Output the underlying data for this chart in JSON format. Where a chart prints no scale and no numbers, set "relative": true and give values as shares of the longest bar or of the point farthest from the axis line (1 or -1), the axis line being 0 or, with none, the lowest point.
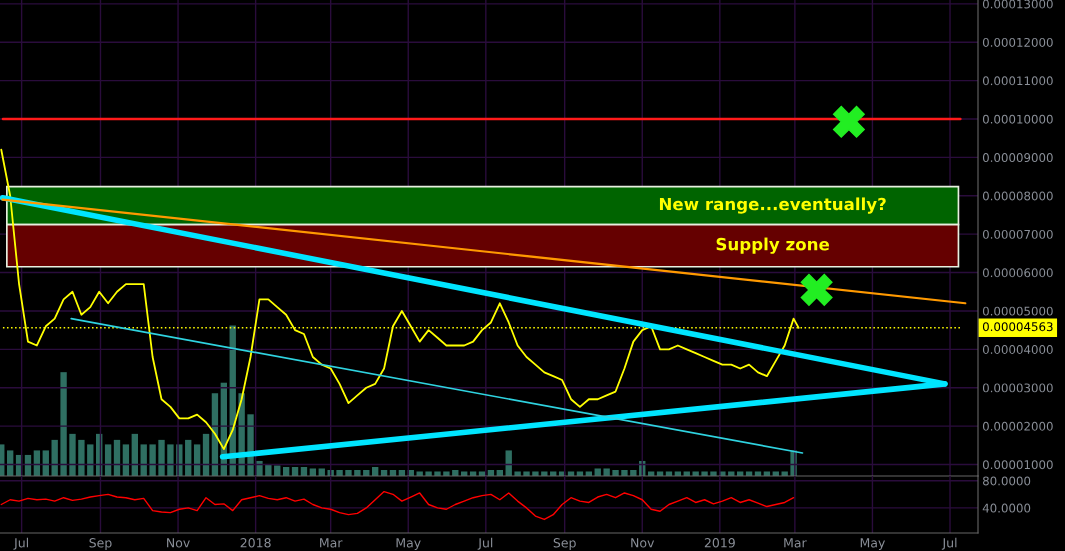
{
  "chart_data": [
    {
      "type": "line",
      "ylim": [
        7e-06,
        0.000131
      ],
      "xlim": [
        "2017-06-14",
        "2019-07-23"
      ],
      "xticks": [
        {
          "value": "2017-07-01",
          "label": null
        },
        {
          "value": "2017-09-01",
          "label": null
        },
        {
          "value": "2017-11-01",
          "label": null
        },
        {
          "value": "2018-01-01",
          "label": null
        },
        {
          "value": "2018-03-01",
          "label": null
        },
        {
          "value": "2018-05-01",
          "label": null
        },
        {
          "value": "2018-07-01",
          "label": null
        },
        {
          "value": "2018-09-01",
          "label": null
        },
        {
          "value": "2018-11-01",
          "label": null
        },
        {
          "value": "2019-01-01",
          "label": null
        },
        {
          "value": "2019-03-01",
          "label": null
        },
        {
          "value": "2019-05-01",
          "label": null
        },
        {
          "value": "2019-07-01",
          "label": null
        }
      ],
      "yticks": [
        {
          "value": 1e-05,
          "label": "0.00001000"
        },
        {
          "value": 2e-05,
          "label": "0.00002000"
        },
        {
          "value": 3e-05,
          "label": "0.00003000"
        },
        {
          "value": 4e-05,
          "label": "0.00004000"
        },
        {
          "value": 5e-05,
          "label": "0.00005000"
        },
        {
          "value": 6e-05,
          "label": "0.00006000"
        },
        {
          "value": 7e-05,
          "label": "0.00007000"
        },
        {
          "value": 8e-05,
          "label": "0.00008000"
        },
        {
          "value": 9e-05,
          "label": "0.00009000"
        },
        {
          "value": 0.0001,
          "label": "0.00010000"
        },
        {
          "value": 0.00011,
          "label": "0.00011000"
        },
        {
          "value": 0.00012,
          "label": "0.00012000"
        },
        {
          "value": 0.00013,
          "label": "0.00013000"
        }
      ],
      "tick_labels": "y",
      "grid": true,
      "x": [
        "2017-06-15",
        "2017-06-22",
        "2017-06-29",
        "2017-07-06",
        "2017-07-13",
        "2017-07-20",
        "2017-07-27",
        "2017-08-03",
        "2017-08-10",
        "2017-08-17",
        "2017-08-24",
        "2017-08-31",
        "2017-09-07",
        "2017-09-14",
        "2017-09-21",
        "2017-09-28",
        "2017-10-05",
        "2017-10-12",
        "2017-10-19",
        "2017-10-26",
        "2017-11-02",
        "2017-11-09",
        "2017-11-16",
        "2017-11-23",
        "2017-11-30",
        "2017-12-07",
        "2017-12-14",
        "2017-12-21",
        "2017-12-28",
        "2018-01-04",
        "2018-01-11",
        "2018-01-18",
        "2018-01-25",
        "2018-02-01",
        "2018-02-08",
        "2018-02-15",
        "2018-02-22",
        "2018-03-01",
        "2018-03-08",
        "2018-03-15",
        "2018-03-22",
        "2018-03-29",
        "2018-04-05",
        "2018-04-12",
        "2018-04-19",
        "2018-04-26",
        "2018-05-03",
        "2018-05-10",
        "2018-05-17",
        "2018-05-24",
        "2018-05-31",
        "2018-06-07",
        "2018-06-14",
        "2018-06-21",
        "2018-06-28",
        "2018-07-05",
        "2018-07-12",
        "2018-07-19",
        "2018-07-26",
        "2018-08-02",
        "2018-08-09",
        "2018-08-16",
        "2018-08-23",
        "2018-08-30",
        "2018-09-06",
        "2018-09-13",
        "2018-09-20",
        "2018-09-27",
        "2018-10-04",
        "2018-10-11",
        "2018-10-18",
        "2018-10-25",
        "2018-11-01",
        "2018-11-08",
        "2018-11-15",
        "2018-11-22",
        "2018-11-29",
        "2018-12-06",
        "2018-12-13",
        "2018-12-20",
        "2018-12-27",
        "2019-01-03",
        "2019-01-10",
        "2019-01-17",
        "2019-01-24",
        "2019-01-31",
        "2019-02-07",
        "2019-02-14",
        "2019-02-21",
        "2019-02-28",
        "2019-03-04"
      ],
      "series": [
        {
          "color": "#ffff00",
          "values": [
            9.2e-05,
            8e-05,
            5.7e-05,
            4.2e-05,
            4.1e-05,
            4.6e-05,
            4.8e-05,
            5.3e-05,
            5.5e-05,
            4.9e-05,
            5.1e-05,
            5.5e-05,
            5.2e-05,
            5.5e-05,
            5.7e-05,
            5.7e-05,
            5.7e-05,
            3.8e-05,
            2.7e-05,
            2.5e-05,
            2.2e-05,
            2.2e-05,
            2.3e-05,
            2.1e-05,
            1.8e-05,
            1.4e-05,
            1.9e-05,
            2.7e-05,
            3.8e-05,
            5.3e-05,
            5.3e-05,
            5.1e-05,
            4.9e-05,
            4.5e-05,
            4.4e-05,
            3.8e-05,
            3.6e-05,
            3.5e-05,
            3.1e-05,
            2.6e-05,
            2.8e-05,
            3e-05,
            3.1e-05,
            3.5e-05,
            4.6e-05,
            5e-05,
            4.6e-05,
            4.2e-05,
            4.5e-05,
            4.3e-05,
            4.1e-05,
            4.1e-05,
            4.1e-05,
            4.2e-05,
            4.5e-05,
            4.7e-05,
            5.2e-05,
            4.7e-05,
            4.1e-05,
            3.8e-05,
            3.6e-05,
            3.4e-05,
            3.3e-05,
            3.2e-05,
            2.7e-05,
            2.5e-05,
            2.7e-05,
            2.7e-05,
            2.8e-05,
            2.9e-05,
            3.5e-05,
            4.2e-05,
            4.5e-05,
            4.6e-05,
            4e-05,
            4e-05,
            4.1e-05,
            4e-05,
            3.9e-05,
            3.8e-05,
            3.7e-05,
            3.6e-05,
            3.6e-05,
            3.5e-05,
            3.6e-05,
            3.4e-05,
            3.3e-05,
            3.7e-05,
            4.1e-05,
            4.8e-05,
            4.56e-05
          ]
        },
        {
          "type": "line",
          "color": "#ff9900",
          "x": [
            "2017-06-16",
            "2019-07-13"
          ],
          "values": [
            7.9e-05,
            5.2e-05
          ]
        },
        {
          "type": "line",
          "color": "#00e5ff",
          "x": [
            "2017-06-16",
            "2019-06-27"
          ],
          "values": [
            7.95e-05,
            3.1e-05
          ]
        },
        {
          "type": "line",
          "color": "#00e5ff",
          "x": [
            "2017-12-06",
            "2019-06-27"
          ],
          "values": [
            1.2e-05,
            3.1e-05
          ]
        },
        {
          "type": "line",
          "color": "#2fd3e0",
          "x": [
            "2017-08-09",
            "2019-03-07"
          ],
          "values": [
            4.8e-05,
            1.3e-05
          ]
        }
      ],
      "ref_lines": [
        {
          "axis": "y",
          "value": 0.0001,
          "color": "#ff1a1a",
          "line_style": "solid"
        },
        {
          "axis": "y",
          "value": 4.563e-05,
          "label": "0.00004563",
          "color": "#ffff00",
          "line_style": "dotted"
        }
      ],
      "bands": [
        {
          "axis": "y",
          "from": 7.25e-05,
          "to": 8.24e-05,
          "label": "New range...eventually?",
          "color": "#006400"
        },
        {
          "axis": "y",
          "from": 6.15e-05,
          "to": 7.25e-05,
          "label": "Supply zone",
          "color": "#650000"
        }
      ]
    },
    {
      "type": "bar",
      "relative": true,
      "color": "#2f6f62",
      "xlim": [
        "2017-06-14",
        "2019-07-23"
      ],
      "xticks": [
        {
          "value": "2017-07-01",
          "label": null
        },
        {
          "value": "2017-09-01",
          "label": null
        },
        {
          "value": "2017-11-01",
          "label": null
        },
        {
          "value": "2018-01-01",
          "label": null
        },
        {
          "value": "2018-03-01",
          "label": null
        },
        {
          "value": "2018-05-01",
          "label": null
        },
        {
          "value": "2018-07-01",
          "label": null
        },
        {
          "value": "2018-09-01",
          "label": null
        },
        {
          "value": "2018-11-01",
          "label": null
        },
        {
          "value": "2019-01-01",
          "label": null
        },
        {
          "value": "2019-03-01",
          "label": null
        },
        {
          "value": "2019-05-01",
          "label": null
        },
        {
          "value": "2019-07-01",
          "label": null
        }
      ],
      "tick_labels": false,
      "x": [
        "2017-06-15",
        "2017-06-22",
        "2017-06-29",
        "2017-07-06",
        "2017-07-13",
        "2017-07-20",
        "2017-07-27",
        "2017-08-03",
        "2017-08-10",
        "2017-08-17",
        "2017-08-24",
        "2017-08-31",
        "2017-09-07",
        "2017-09-14",
        "2017-09-21",
        "2017-09-28",
        "2017-10-05",
        "2017-10-12",
        "2017-10-19",
        "2017-10-26",
        "2017-11-02",
        "2017-11-09",
        "2017-11-16",
        "2017-11-23",
        "2017-11-30",
        "2017-12-07",
        "2017-12-14",
        "2017-12-21",
        "2017-12-28",
        "2018-01-04",
        "2018-01-11",
        "2018-01-18",
        "2018-01-25",
        "2018-02-01",
        "2018-02-08",
        "2018-02-15",
        "2018-02-22",
        "2018-03-01",
        "2018-03-08",
        "2018-03-15",
        "2018-03-22",
        "2018-03-29",
        "2018-04-05",
        "2018-04-12",
        "2018-04-19",
        "2018-04-26",
        "2018-05-03",
        "2018-05-10",
        "2018-05-17",
        "2018-05-24",
        "2018-05-31",
        "2018-06-07",
        "2018-06-14",
        "2018-06-21",
        "2018-06-28",
        "2018-07-05",
        "2018-07-12",
        "2018-07-19",
        "2018-07-26",
        "2018-08-02",
        "2018-08-09",
        "2018-08-16",
        "2018-08-23",
        "2018-08-30",
        "2018-09-06",
        "2018-09-13",
        "2018-09-20",
        "2018-09-27",
        "2018-10-04",
        "2018-10-11",
        "2018-10-18",
        "2018-10-25",
        "2018-11-01",
        "2018-11-08",
        "2018-11-15",
        "2018-11-22",
        "2018-11-29",
        "2018-12-06",
        "2018-12-13",
        "2018-12-20",
        "2018-12-27",
        "2019-01-03",
        "2019-01-10",
        "2019-01-17",
        "2019-01-24",
        "2019-01-31",
        "2019-02-07",
        "2019-02-14",
        "2019-02-21",
        "2019-02-28"
      ],
      "values": [
        0.21,
        0.17,
        0.14,
        0.14,
        0.17,
        0.17,
        0.24,
        0.69,
        0.28,
        0.24,
        0.21,
        0.28,
        0.21,
        0.24,
        0.21,
        0.28,
        0.21,
        0.21,
        0.24,
        0.21,
        0.21,
        0.24,
        0.21,
        0.28,
        0.55,
        0.62,
        1,
        0.55,
        0.41,
        0.1,
        0.08,
        0.07,
        0.06,
        0.06,
        0.06,
        0.05,
        0.05,
        0.04,
        0.04,
        0.04,
        0.04,
        0.04,
        0.06,
        0.04,
        0.04,
        0.04,
        0.04,
        0.03,
        0.03,
        0.03,
        0.03,
        0.04,
        0.03,
        0.03,
        0.03,
        0.04,
        0.04,
        0.17,
        0.03,
        0.03,
        0.03,
        0.03,
        0.03,
        0.03,
        0.03,
        0.03,
        0.03,
        0.05,
        0.05,
        0.04,
        0.04,
        0.04,
        0.1,
        0.03,
        0.03,
        0.03,
        0.03,
        0.03,
        0.03,
        0.03,
        0.03,
        0.03,
        0.03,
        0.03,
        0.03,
        0.03,
        0.03,
        0.03,
        0.03,
        0.17
      ]
    },
    {
      "type": "line",
      "ylim": [
        3,
        87
      ],
      "yticks": [
        {
          "value": 80,
          "label": "80.0000"
        },
        {
          "value": 40,
          "label": "40.0000"
        }
      ],
      "xlim": [
        "2017-06-14",
        "2019-07-23"
      ],
      "xticks": [
        {
          "value": "2017-07-01",
          "label": "Jul"
        },
        {
          "value": "2017-09-01",
          "label": "Sep"
        },
        {
          "value": "2017-11-01",
          "label": "Nov"
        },
        {
          "value": "2018-01-01",
          "label": "2018"
        },
        {
          "value": "2018-03-01",
          "label": "Mar"
        },
        {
          "value": "2018-05-01",
          "label": "May"
        },
        {
          "value": "2018-07-01",
          "label": "Jul"
        },
        {
          "value": "2018-09-01",
          "label": "Sep"
        },
        {
          "value": "2018-11-01",
          "label": "Nov"
        },
        {
          "value": "2019-01-01",
          "label": "2019"
        },
        {
          "value": "2019-03-01",
          "label": "Mar"
        },
        {
          "value": "2019-05-01",
          "label": "May"
        },
        {
          "value": "2019-07-01",
          "label": "Jul"
        }
      ],
      "grid": true,
      "x": [
        "2017-06-15",
        "2017-06-22",
        "2017-06-29",
        "2017-07-06",
        "2017-07-13",
        "2017-07-20",
        "2017-07-27",
        "2017-08-03",
        "2017-08-10",
        "2017-08-17",
        "2017-08-24",
        "2017-08-31",
        "2017-09-07",
        "2017-09-14",
        "2017-09-21",
        "2017-09-28",
        "2017-10-05",
        "2017-10-12",
        "2017-10-19",
        "2017-10-26",
        "2017-11-02",
        "2017-11-09",
        "2017-11-16",
        "2017-11-23",
        "2017-11-30",
        "2017-12-07",
        "2017-12-14",
        "2017-12-21",
        "2017-12-28",
        "2018-01-04",
        "2018-01-11",
        "2018-01-18",
        "2018-01-25",
        "2018-02-01",
        "2018-02-08",
        "2018-02-15",
        "2018-02-22",
        "2018-03-01",
        "2018-03-08",
        "2018-03-15",
        "2018-03-22",
        "2018-03-29",
        "2018-04-05",
        "2018-04-12",
        "2018-04-19",
        "2018-04-26",
        "2018-05-03",
        "2018-05-10",
        "2018-05-17",
        "2018-05-24",
        "2018-05-31",
        "2018-06-07",
        "2018-06-14",
        "2018-06-21",
        "2018-06-28",
        "2018-07-05",
        "2018-07-12",
        "2018-07-19",
        "2018-07-26",
        "2018-08-02",
        "2018-08-09",
        "2018-08-16",
        "2018-08-23",
        "2018-08-30",
        "2018-09-06",
        "2018-09-13",
        "2018-09-20",
        "2018-09-27",
        "2018-10-04",
        "2018-10-11",
        "2018-10-18",
        "2018-10-25",
        "2018-11-01",
        "2018-11-08",
        "2018-11-15",
        "2018-11-22",
        "2018-11-29",
        "2018-12-06",
        "2018-12-13",
        "2018-12-20",
        "2018-12-27",
        "2019-01-03",
        "2019-01-10",
        "2019-01-17",
        "2019-01-24",
        "2019-01-31",
        "2019-02-07",
        "2019-02-14",
        "2019-02-21",
        "2019-02-28"
      ],
      "series": [
        {
          "color": "#ff0000",
          "values": [
            45,
            52,
            50,
            54,
            52,
            53,
            50,
            55,
            51,
            53,
            56,
            58,
            60,
            56,
            55,
            52,
            54,
            36,
            34,
            33,
            38,
            40,
            36,
            55,
            45,
            46,
            36,
            52,
            55,
            58,
            54,
            52,
            55,
            50,
            53,
            45,
            40,
            38,
            33,
            30,
            32,
            40,
            52,
            64,
            60,
            50,
            56,
            62,
            45,
            40,
            38,
            45,
            50,
            55,
            58,
            60,
            52,
            62,
            50,
            40,
            28,
            23,
            30,
            45,
            55,
            50,
            48,
            56,
            60,
            55,
            62,
            58,
            52,
            38,
            35,
            45,
            50,
            55,
            48,
            52,
            46,
            50,
            55,
            48,
            52,
            47,
            42,
            45,
            48,
            55
          ]
        }
      ]
    }
  ]
}
